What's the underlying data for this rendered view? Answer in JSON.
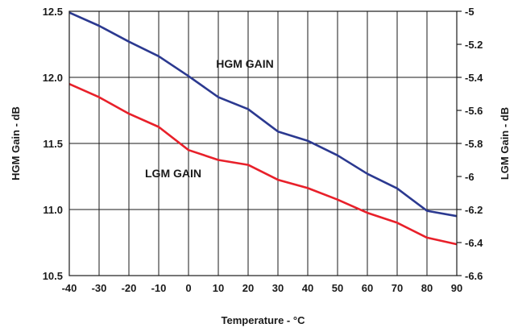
{
  "chart_data": {
    "type": "line",
    "xlabel": "Temperature - °C",
    "ylabel_left": "HGM Gain - dB",
    "ylabel_right": "LGM Gain - dB",
    "x": [
      -40,
      -30,
      -20,
      -10,
      0,
      10,
      20,
      30,
      40,
      50,
      60,
      70,
      80,
      90
    ],
    "x_ticks": [
      "-40",
      "-30",
      "-20",
      "-10",
      "0",
      "10",
      "20",
      "30",
      "40",
      "50",
      "60",
      "70",
      "80",
      "90"
    ],
    "xlim": [
      -40,
      90
    ],
    "ylim_left": [
      10.5,
      12.5
    ],
    "ylim_right": [
      -6.6,
      -5.0
    ],
    "y_ticks_left": [
      "12.5",
      "12.0",
      "11.5",
      "11.0",
      "10.5"
    ],
    "y_ticks_right": [
      "-5",
      "-5.2",
      "-5.4",
      "-5.6",
      "-5.8",
      "-6",
      "-6.2",
      "-6.4",
      "-6.6"
    ],
    "grid": true,
    "series": [
      {
        "name": "HGM GAIN",
        "axis": "left",
        "color": "#2b3990",
        "values": [
          12.49,
          12.39,
          12.27,
          12.16,
          12.01,
          11.85,
          11.76,
          11.59,
          11.52,
          11.41,
          11.27,
          11.16,
          10.99,
          10.95
        ]
      },
      {
        "name": "LGM GAIN",
        "axis": "right",
        "color": "#e8202a",
        "values": [
          -5.44,
          -5.52,
          -5.62,
          -5.7,
          -5.84,
          -5.9,
          -5.93,
          -6.02,
          -6.07,
          -6.14,
          -6.22,
          -6.28,
          -6.37,
          -6.41
        ]
      }
    ]
  }
}
